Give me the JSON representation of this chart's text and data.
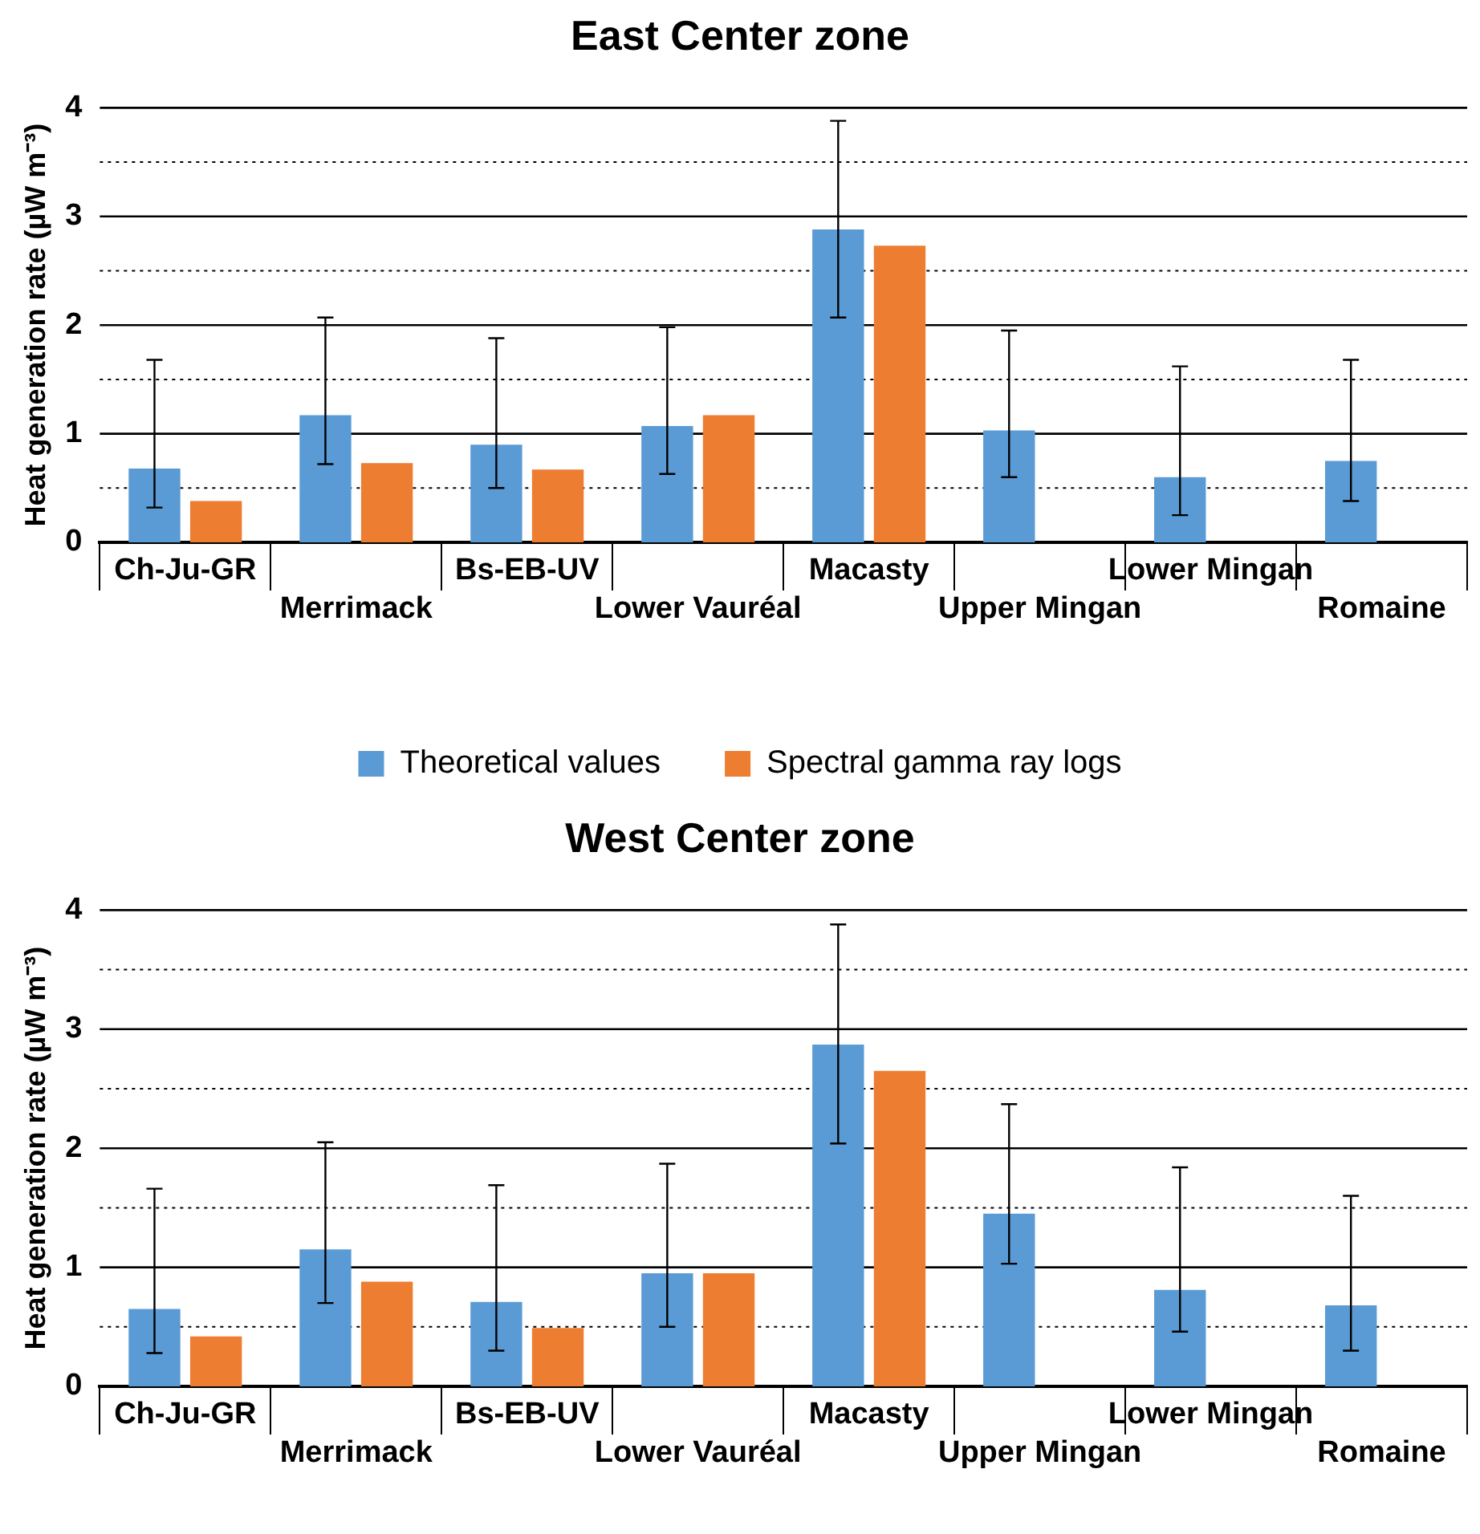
{
  "chart_data": [
    {
      "type": "bar",
      "title": "East Center zone",
      "ylabel": "Heat generation rate (µW m⁻³)",
      "categories": [
        "Ch-Ju-GR",
        "Merrimack",
        "Bs-EB-UV",
        "Lower Vauréal",
        "Macasty",
        "Upper Mingan",
        "Lower Mingan",
        "Romaine"
      ],
      "series": [
        {
          "name": "Theoretical values",
          "color": "#5b9bd5",
          "values": [
            0.68,
            1.17,
            0.9,
            1.07,
            2.88,
            1.03,
            0.6,
            0.75
          ],
          "errors": [
            [
              0.32,
              1.68
            ],
            [
              0.72,
              2.07
            ],
            [
              0.5,
              1.88
            ],
            [
              0.63,
              1.98
            ],
            [
              2.07,
              3.88
            ],
            [
              0.6,
              1.95
            ],
            [
              0.25,
              1.62
            ],
            [
              0.38,
              1.68
            ]
          ]
        },
        {
          "name": "Spectral gamma ray logs",
          "color": "#ed7d31",
          "values": [
            0.38,
            0.73,
            0.67,
            1.17,
            2.73,
            null,
            null,
            null
          ]
        }
      ],
      "ylim": [
        0,
        4
      ],
      "yticks": [
        0,
        {
          "value": 0.5,
          "label": null
        },
        1,
        {
          "value": 1.5,
          "label": null
        },
        2,
        {
          "value": 2.5,
          "label": null
        },
        3,
        {
          "value": 3.5,
          "label": null
        },
        4
      ],
      "grid": "y",
      "legend": "bottom"
    },
    {
      "type": "bar",
      "title": "West Center zone",
      "ylabel": "Heat generation rate (µW m⁻³)",
      "categories": [
        "Ch-Ju-GR",
        "Merrimack",
        "Bs-EB-UV",
        "Lower Vauréal",
        "Macasty",
        "Upper Mingan",
        "Lower Mingan",
        "Romaine"
      ],
      "series": [
        {
          "color": "#5b9bd5",
          "values": [
            0.65,
            1.15,
            0.71,
            0.95,
            2.87,
            1.45,
            0.81,
            0.68
          ],
          "errors": [
            [
              0.28,
              1.66
            ],
            [
              0.7,
              2.05
            ],
            [
              0.3,
              1.69
            ],
            [
              0.5,
              1.87
            ],
            [
              2.04,
              3.88
            ],
            [
              1.03,
              2.37
            ],
            [
              0.46,
              1.84
            ],
            [
              0.3,
              1.6
            ]
          ]
        },
        {
          "color": "#ed7d31",
          "values": [
            0.42,
            0.88,
            0.49,
            0.95,
            2.65,
            null,
            null,
            null
          ]
        }
      ],
      "ylim": [
        0,
        4
      ],
      "yticks": [
        0,
        {
          "value": 0.5,
          "label": null
        },
        1,
        {
          "value": 1.5,
          "label": null
        },
        2,
        {
          "value": 2.5,
          "label": null
        },
        3,
        {
          "value": 3.5,
          "label": null
        },
        4
      ],
      "grid": "y",
      "legend": false
    }
  ]
}
